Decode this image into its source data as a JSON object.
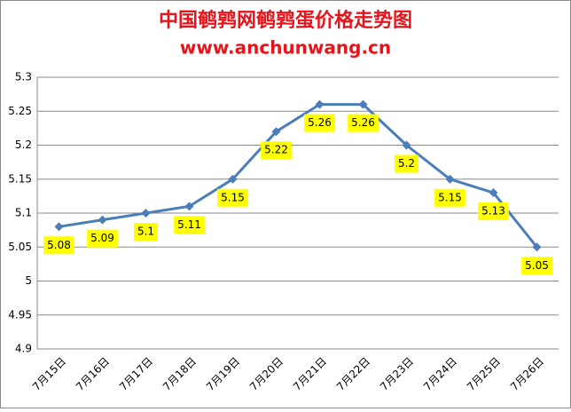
{
  "chart_data": {
    "type": "line",
    "title": "中国鹌鹑网鹌鹑蛋价格走势图",
    "subtitle": "www.anchunwang.cn",
    "categories": [
      "7月15日",
      "7月16日",
      "7月17日",
      "7月18日",
      "7月19日",
      "7月20日",
      "7月21日",
      "7月22日",
      "7月23日",
      "7月24日",
      "7月25日",
      "7月26日"
    ],
    "series": [
      {
        "color": "#4a7ebb",
        "values": [
          5.08,
          5.09,
          5.1,
          5.11,
          5.15,
          5.22,
          5.26,
          5.26,
          5.2,
          5.15,
          5.13,
          5.05
        ]
      }
    ],
    "ylim": [
      4.9,
      5.3
    ],
    "yticks": [
      4.9,
      4.95,
      5,
      5.05,
      5.1,
      5.15,
      5.2,
      5.25,
      5.3
    ],
    "grid": true,
    "title_color": "#e8141b",
    "label_background": "#ffff00"
  }
}
